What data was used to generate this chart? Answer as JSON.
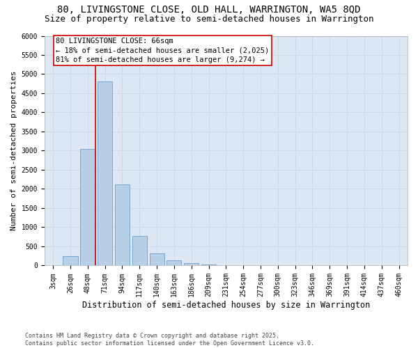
{
  "title_line1": "80, LIVINGSTONE CLOSE, OLD HALL, WARRINGTON, WA5 8QD",
  "title_line2": "Size of property relative to semi-detached houses in Warrington",
  "xlabel": "Distribution of semi-detached houses by size in Warrington",
  "ylabel": "Number of semi-detached properties",
  "bin_labels": [
    "3sqm",
    "26sqm",
    "48sqm",
    "71sqm",
    "94sqm",
    "117sqm",
    "140sqm",
    "163sqm",
    "186sqm",
    "209sqm",
    "231sqm",
    "254sqm",
    "277sqm",
    "300sqm",
    "323sqm",
    "346sqm",
    "369sqm",
    "391sqm",
    "414sqm",
    "437sqm",
    "460sqm"
  ],
  "bar_values": [
    0,
    250,
    3050,
    4800,
    2120,
    780,
    310,
    140,
    70,
    35,
    10,
    5,
    0,
    0,
    0,
    0,
    0,
    0,
    0,
    0,
    0
  ],
  "bar_color": "#b8cfe8",
  "bar_edge_color": "#6a9fc8",
  "annotation_label": "80 LIVINGSTONE CLOSE: 66sqm",
  "annotation_smaller": "← 18% of semi-detached houses are smaller (2,025)",
  "annotation_larger": "81% of semi-detached houses are larger (9,274) →",
  "red_line_color": "#cc0000",
  "annotation_box_color": "#ffffff",
  "annotation_border_color": "#cc0000",
  "ylim": [
    0,
    6000
  ],
  "yticks": [
    0,
    500,
    1000,
    1500,
    2000,
    2500,
    3000,
    3500,
    4000,
    4500,
    5000,
    5500,
    6000
  ],
  "grid_color": "#ccd8e8",
  "plot_bg_color": "#dde8f4",
  "figure_bg_color": "#ffffff",
  "footnote": "Contains HM Land Registry data © Crown copyright and database right 2025.\nContains public sector information licensed under the Open Government Licence v3.0.",
  "title_fontsize": 10,
  "subtitle_fontsize": 9,
  "xlabel_fontsize": 8.5,
  "ylabel_fontsize": 8,
  "tick_fontsize": 7,
  "annotation_fontsize": 7.5,
  "footnote_fontsize": 6,
  "red_line_bin_index": 2.47
}
